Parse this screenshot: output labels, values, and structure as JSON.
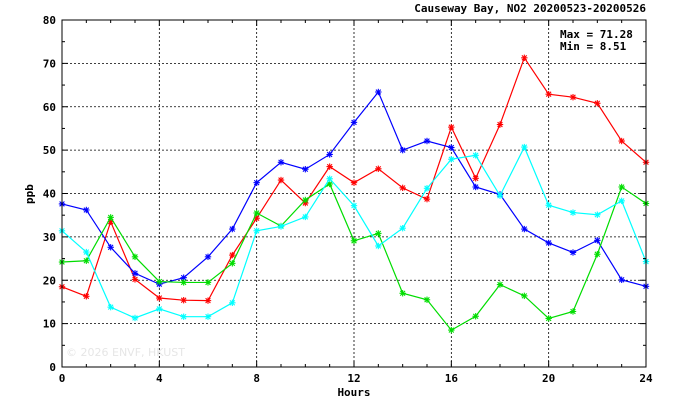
{
  "chart_data": {
    "type": "line",
    "title": "Causeway Bay, NO2 20200523-20200526",
    "xlabel": "Hours",
    "ylabel": "ppb",
    "xlim": [
      0,
      24
    ],
    "ylim": [
      0,
      80
    ],
    "xticks": [
      0,
      4,
      8,
      12,
      16,
      20,
      24
    ],
    "yticks": [
      0,
      10,
      20,
      30,
      40,
      50,
      60,
      70,
      80
    ],
    "grid": true,
    "x": [
      0,
      1,
      2,
      3,
      4,
      5,
      6,
      7,
      8,
      9,
      10,
      11,
      12,
      13,
      14,
      15,
      16,
      17,
      18,
      19,
      20,
      21,
      22,
      23,
      24
    ],
    "series": [
      {
        "color": "#ff0000",
        "values": [
          18.5,
          16.3,
          33.5,
          20.2,
          15.9,
          15.4,
          15.3,
          25.8,
          34.3,
          43.1,
          37.8,
          46.2,
          42.5,
          45.7,
          41.3,
          38.7,
          55.3,
          43.5,
          55.9,
          71.28,
          62.9,
          62.2,
          60.8,
          52.1,
          47.2
        ]
      },
      {
        "color": "#0000ff",
        "values": [
          37.6,
          36.2,
          27.6,
          21.6,
          19.1,
          20.6,
          25.4,
          31.8,
          42.5,
          47.2,
          45.6,
          49.0,
          56.4,
          63.4,
          50.0,
          52.1,
          50.6,
          41.5,
          39.8,
          31.8,
          28.6,
          26.4,
          29.2,
          20.1,
          18.6
        ]
      },
      {
        "color": "#00dd00",
        "values": [
          24.2,
          24.5,
          34.5,
          25.4,
          19.7,
          19.5,
          19.5,
          23.9,
          35.5,
          32.5,
          38.5,
          42.2,
          29.1,
          30.8,
          17.0,
          15.5,
          8.51,
          11.7,
          19.0,
          16.4,
          11.2,
          12.8,
          26.0,
          41.5,
          37.7
        ]
      },
      {
        "color": "#00ffff",
        "values": [
          31.4,
          26.5,
          13.8,
          11.3,
          13.4,
          11.6,
          11.6,
          14.8,
          31.4,
          32.4,
          34.6,
          43.4,
          37.2,
          27.9,
          32.0,
          41.2,
          47.9,
          48.8,
          39.5,
          50.7,
          37.3,
          35.6,
          35.1,
          38.3,
          24.3
        ]
      }
    ],
    "annotations": {
      "max_label": "Max = 71.28",
      "min_label": "Min =  8.51",
      "watermark": "© 2026  ENVF, HKUST"
    }
  }
}
